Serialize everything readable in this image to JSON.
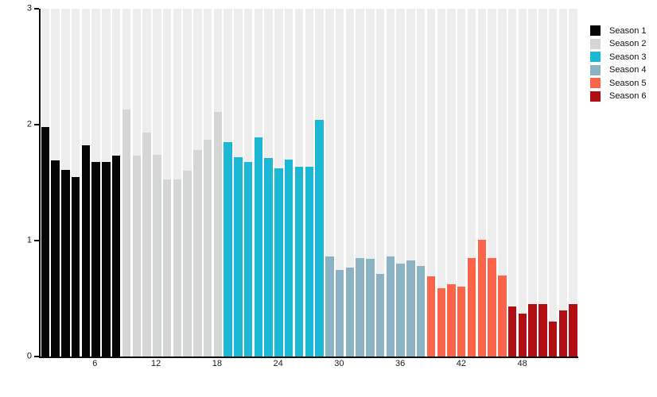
{
  "chart_data": {
    "type": "bar",
    "title": "",
    "xlabel": "",
    "ylabel": "",
    "ylim": [
      0,
      3
    ],
    "y_ticks": [
      0,
      1,
      2,
      3
    ],
    "x_ticks": [
      6,
      12,
      18,
      24,
      30,
      36,
      42,
      48
    ],
    "grid": "off",
    "background_stripes": true,
    "stripe_color": "#ededed",
    "legend_position": "top-right",
    "total_bars": 53,
    "series": [
      {
        "name": "Season 1",
        "color": "#050505",
        "start_episode": 1,
        "values": [
          1.98,
          1.69,
          1.61,
          1.55,
          1.82,
          1.68,
          1.68,
          1.73
        ]
      },
      {
        "name": "Season 2",
        "color": "#d3d6d5",
        "start_episode": 9,
        "values": [
          2.13,
          1.73,
          1.93,
          1.74,
          1.53,
          1.53,
          1.6,
          1.78,
          1.87,
          2.11
        ]
      },
      {
        "name": "Season 3",
        "color": "#1ab8d3",
        "start_episode": 19,
        "values": [
          1.85,
          1.72,
          1.68,
          1.89,
          1.71,
          1.62,
          1.7,
          1.64,
          1.64,
          2.04
        ]
      },
      {
        "name": "Season 4",
        "color": "#8cb3c4",
        "start_episode": 29,
        "values": [
          0.86,
          0.75,
          0.77,
          0.85,
          0.84,
          0.71,
          0.86,
          0.8,
          0.83,
          0.78
        ]
      },
      {
        "name": "Season 5",
        "color": "#fb6448",
        "start_episode": 39,
        "values": [
          0.69,
          0.59,
          0.62,
          0.6,
          0.85,
          1.01,
          0.85,
          0.7
        ]
      },
      {
        "name": "Season 6",
        "color": "#b00e12",
        "start_episode": 47,
        "values": [
          0.43,
          0.37,
          0.45,
          0.45,
          0.3,
          0.4,
          0.45
        ]
      }
    ]
  },
  "legend": {
    "items": [
      {
        "label": "Season 1",
        "color": "#050505"
      },
      {
        "label": "Season 2",
        "color": "#d3d6d5"
      },
      {
        "label": "Season 3",
        "color": "#1ab8d3"
      },
      {
        "label": "Season 4",
        "color": "#8cb3c4"
      },
      {
        "label": "Season 5",
        "color": "#fb6448"
      },
      {
        "label": "Season 6",
        "color": "#b00e12"
      }
    ]
  }
}
